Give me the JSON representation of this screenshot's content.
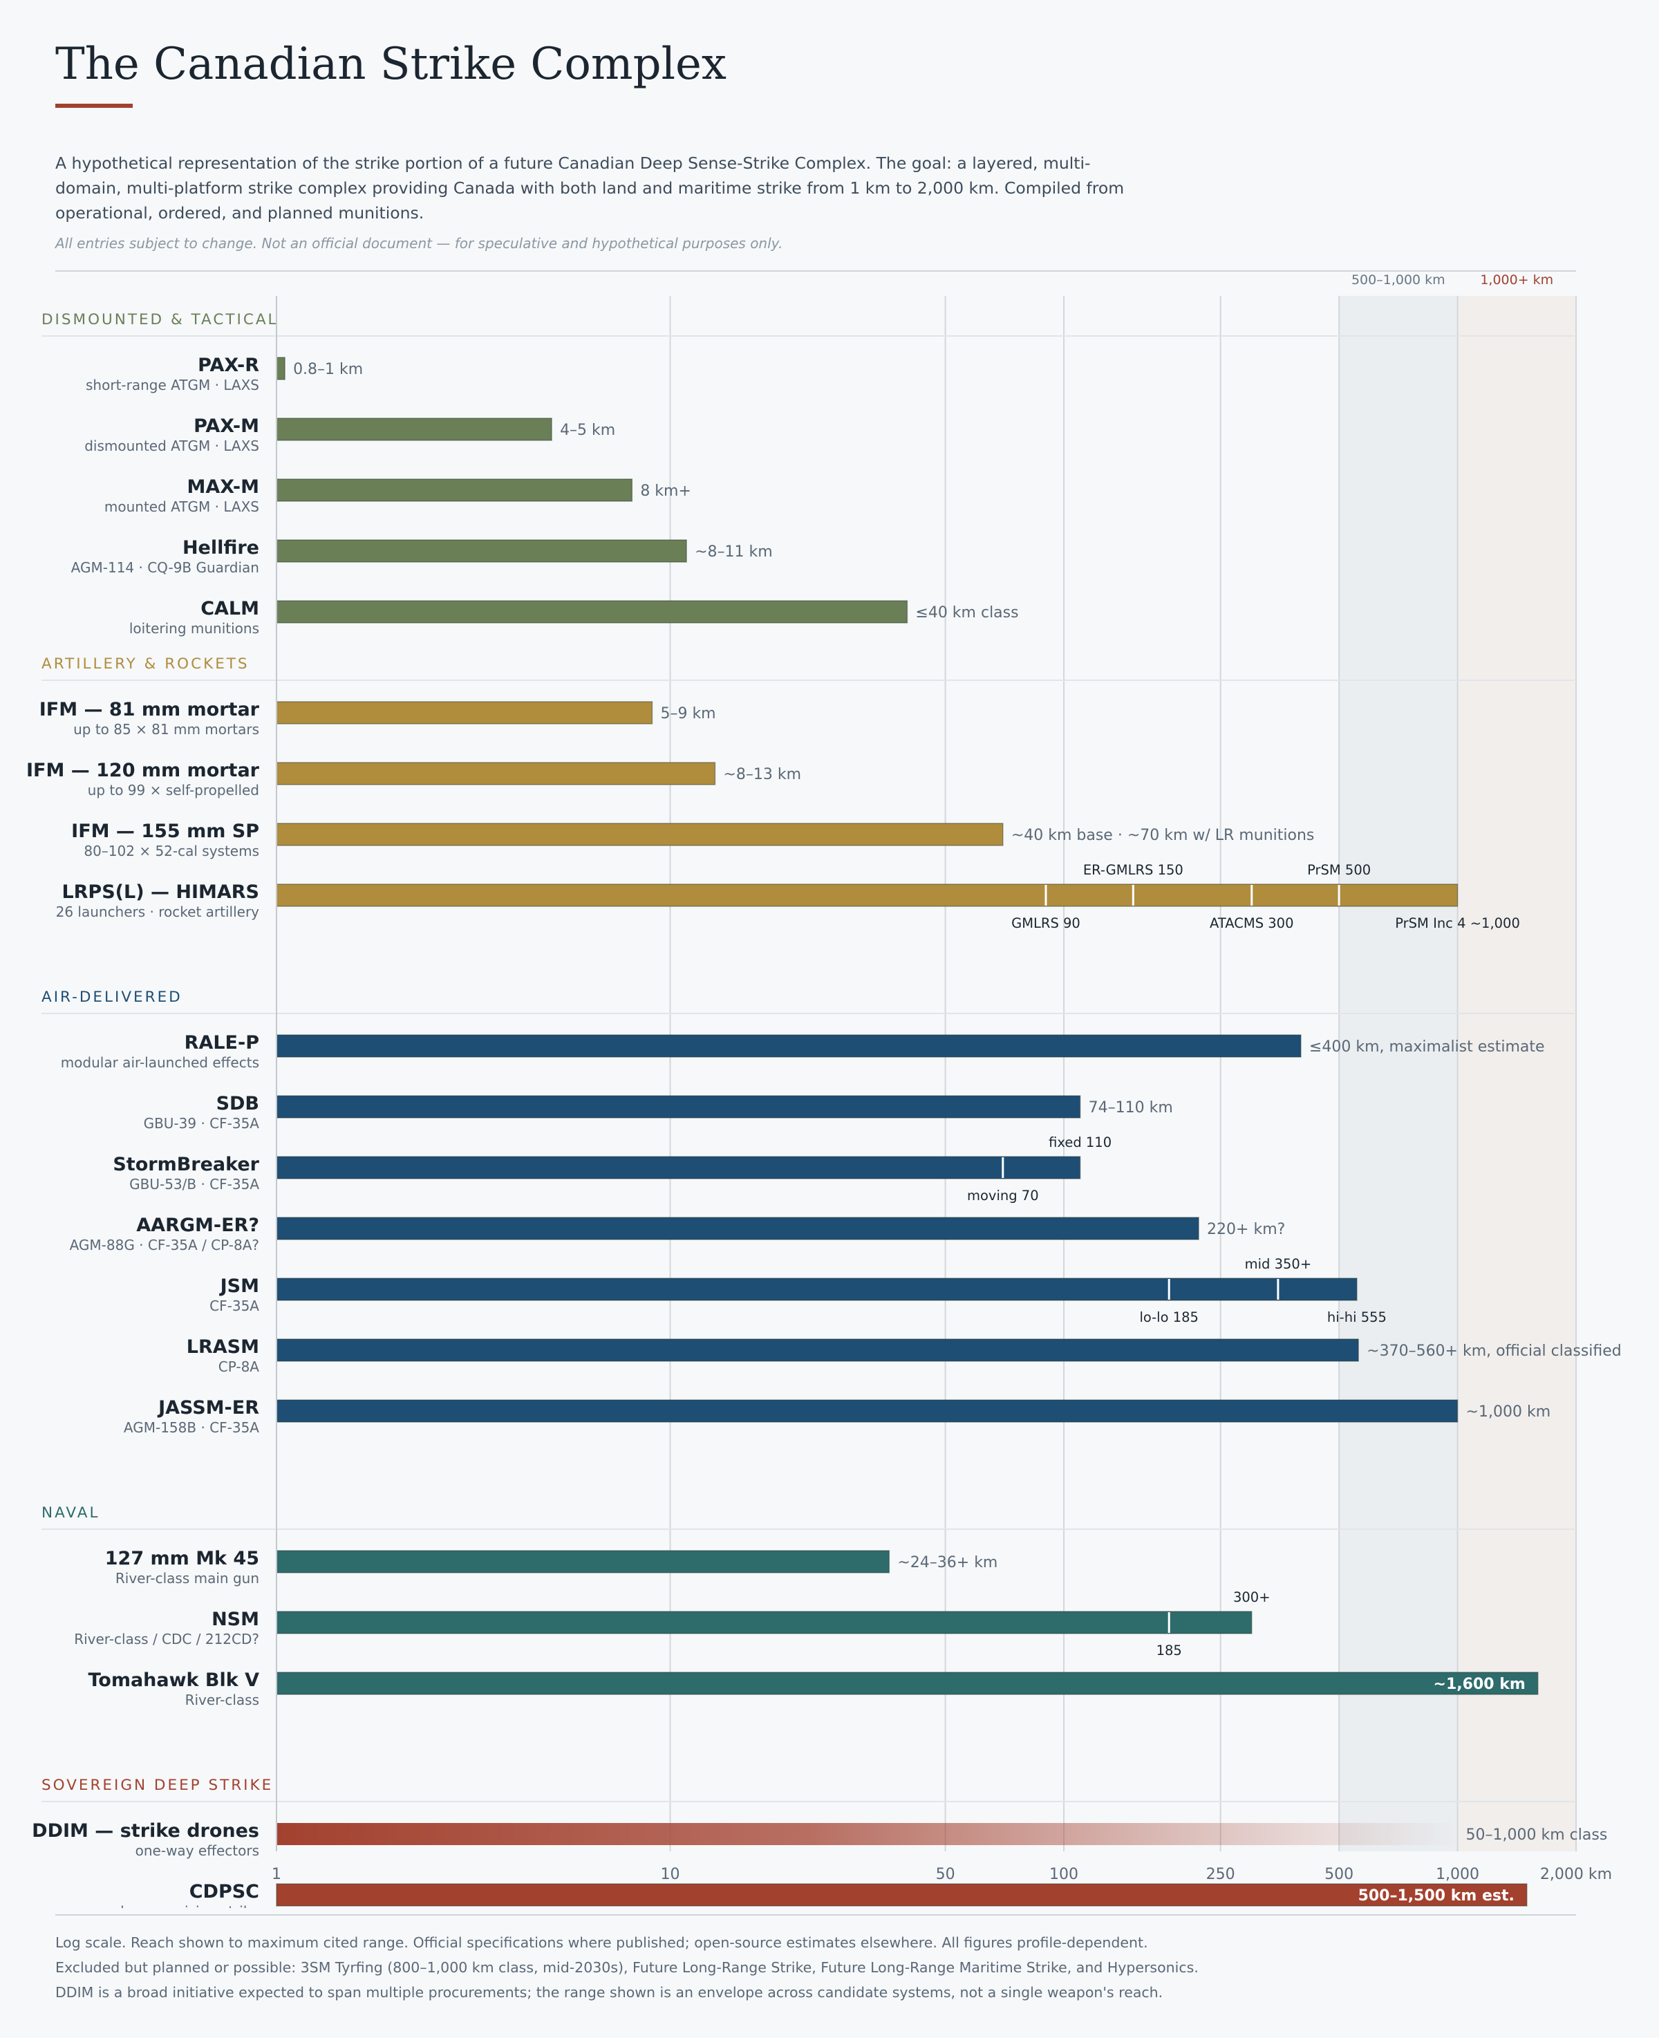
{
  "page": {
    "title": "The Canadian Strike Complex",
    "intro": "A hypothetical representation of the strike portion of a future Canadian Deep Sense-Strike Complex. The goal: a layered, multi-domain, multi-platform strike complex providing Canada with both land and maritime strike from 1 km to 2,000 km. Compiled from operational, ordered, and planned munitions.",
    "disclaimer": "All entries subject to change. Not an official document — for speculative and hypothetical purposes only.",
    "footnotes": [
      "Log scale. Reach shown to maximum cited range. Official specifications where published; open-source estimates elsewhere. All figures profile-dependent.",
      "Excluded but planned or possible: 3SM Tyrfing (800–1,000 km class, mid-2030s), Future Long-Range Strike, Future Long-Range Maritime Strike, and Hypersonics.",
      "DDIM is a broad initiative expected to span multiple procurements; the range shown is an envelope across candidate systems, not a single weapon's reach."
    ]
  },
  "colors": {
    "background": "#f6f8fa",
    "text": "#1c2630",
    "muted": "#5b6876",
    "dismounted": "#6b7f56",
    "artillery": "#b08c3d",
    "air": "#1f4e74",
    "naval": "#2e6b6b",
    "sovereign": "#a3412f",
    "band_mid": "#eaeef1",
    "band_far": "#f1eeec",
    "gridline": "#d3d7dc"
  },
  "chart_data": {
    "type": "bar",
    "orientation": "horizontal",
    "xscale": "log",
    "xlim": [
      1,
      2000
    ],
    "xunit": "km",
    "grid": true,
    "xticks": [
      {
        "value": 1,
        "label": "1"
      },
      {
        "value": 10,
        "label": "10"
      },
      {
        "value": 50,
        "label": "50"
      },
      {
        "value": 100,
        "label": "100"
      },
      {
        "value": 250,
        "label": "250"
      },
      {
        "value": 500,
        "label": "500"
      },
      {
        "value": 1000,
        "label": "1,000"
      },
      {
        "value": 2000,
        "label": "2,000 km"
      }
    ],
    "bands": [
      {
        "from": 500,
        "to": 1000,
        "label": "500–1,000 km",
        "color": "#eaeef1",
        "label_color": "#6b7682"
      },
      {
        "from": 1000,
        "to": 2000,
        "label": "1,000+ km",
        "color": "#f1eeec",
        "label_color": "#a3412f"
      }
    ],
    "groups": [
      {
        "name": "DISMOUNTED & TACTICAL",
        "color": "#6b7f56",
        "items": [
          {
            "name": "PAX-R",
            "sub": "short-range ATGM · LAXS",
            "value": 1.05,
            "label": "0.8–1 km"
          },
          {
            "name": "PAX-M",
            "sub": "dismounted ATGM · LAXS",
            "value": 5,
            "label": "4–5 km"
          },
          {
            "name": "MAX-M",
            "sub": "mounted ATGM · LAXS",
            "value": 8,
            "label": "8 km+"
          },
          {
            "name": "Hellfire",
            "sub": "AGM-114 · CQ-9B Guardian",
            "value": 11,
            "label": "~8–11 km"
          },
          {
            "name": "CALM",
            "sub": "loitering munitions",
            "value": 40,
            "label": "≤40 km class"
          }
        ]
      },
      {
        "name": "ARTILLERY & ROCKETS",
        "color": "#b08c3d",
        "items": [
          {
            "name": "IFM — 81 mm mortar",
            "sub": "up to 85 × 81 mm mortars",
            "value": 9,
            "label": "5–9 km"
          },
          {
            "name": "IFM — 120 mm mortar",
            "sub": "up to 99 × self-propelled",
            "value": 13,
            "label": "~8–13 km"
          },
          {
            "name": "IFM — 155 mm SP",
            "sub": "80–102 × 52-cal systems",
            "value": 70,
            "label": "~40 km base · ~70 km w/ LR munitions"
          },
          {
            "name": "LRPS(L) — HIMARS",
            "sub": "26 launchers · rocket artillery",
            "value": 1000,
            "label": "",
            "markers": [
              {
                "value": 90,
                "label": "GMLRS 90",
                "pos": "below"
              },
              {
                "value": 150,
                "label": "ER-GMLRS 150",
                "pos": "above"
              },
              {
                "value": 300,
                "label": "ATACMS 300",
                "pos": "below"
              },
              {
                "value": 500,
                "label": "PrSM 500",
                "pos": "above"
              }
            ],
            "end_label": {
              "text": "PrSM Inc 4 ~1,000",
              "pos": "below"
            }
          }
        ]
      },
      {
        "name": "AIR-DELIVERED",
        "color": "#1f4e74",
        "items": [
          {
            "name": "RALE-P",
            "sub": "modular air-launched effects",
            "value": 400,
            "label": "≤400 km, maximalist estimate"
          },
          {
            "name": "SDB",
            "sub": "GBU-39 · CF-35A",
            "value": 110,
            "label": "74–110 km"
          },
          {
            "name": "StormBreaker",
            "sub": "GBU-53/B · CF-35A",
            "value": 110,
            "label": "",
            "markers": [
              {
                "value": 70,
                "label": "moving 70",
                "pos": "below"
              }
            ],
            "end_label": {
              "text": "fixed 110",
              "pos": "above"
            }
          },
          {
            "name": "AARGM-ER?",
            "sub": "AGM-88G · CF-35A / CP-8A?",
            "value": 220,
            "label": "220+ km?"
          },
          {
            "name": "JSM",
            "sub": "CF-35A",
            "value": 555,
            "label": "",
            "markers": [
              {
                "value": 185,
                "label": "lo-lo 185",
                "pos": "below"
              },
              {
                "value": 350,
                "label": "mid 350+",
                "pos": "above"
              }
            ],
            "end_label": {
              "text": "hi-hi 555",
              "pos": "below"
            }
          },
          {
            "name": "LRASM",
            "sub": "CP-8A",
            "value": 560,
            "label": "~370–560+ km, official classified"
          },
          {
            "name": "JASSM-ER",
            "sub": "AGM-158B · CF-35A",
            "value": 1000,
            "label": "~1,000 km"
          }
        ]
      },
      {
        "name": "NAVAL",
        "color": "#2e6b6b",
        "items": [
          {
            "name": "127 mm Mk 45",
            "sub": "River-class main gun",
            "value": 36,
            "label": "~24–36+ km"
          },
          {
            "name": "NSM",
            "sub": "River-class / CDC / 212CD?",
            "value": 300,
            "label": "",
            "markers": [
              {
                "value": 185,
                "label": "185",
                "pos": "below"
              }
            ],
            "end_label": {
              "text": "300+",
              "pos": "above"
            }
          },
          {
            "name": "Tomahawk Blk V",
            "sub": "River-class",
            "value": 1600,
            "label": "~1,600 km",
            "label_inside": true
          }
        ]
      },
      {
        "name": "SOVEREIGN DEEP STRIKE",
        "color": "#a3412f",
        "items": [
          {
            "name": "DDIM — strike drones",
            "sub": "one-way effectors",
            "value": 1000,
            "label": "50–1,000 km class",
            "gradient": true
          },
          {
            "name": "CDPSC",
            "sub": "deep precision strike",
            "value": 1500,
            "label": "500–1,500 km est.",
            "label_inside": true
          }
        ]
      }
    ]
  }
}
